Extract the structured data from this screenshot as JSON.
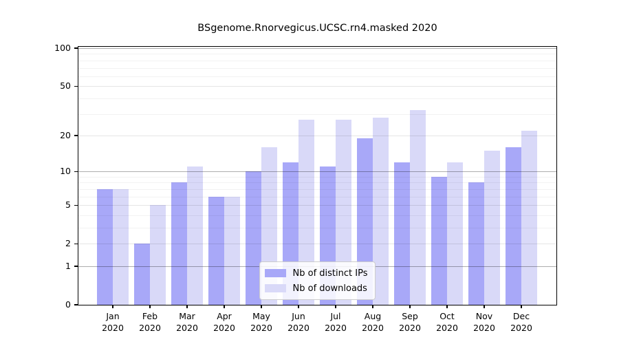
{
  "figure": {
    "background": "#ffffff"
  },
  "chart_data": {
    "type": "bar",
    "title": "BSgenome.Rnorvegicus.UCSC.rn4.masked 2020",
    "categories": [
      "Jan",
      "Feb",
      "Mar",
      "Apr",
      "May",
      "Jun",
      "Jul",
      "Aug",
      "Sep",
      "Oct",
      "Nov",
      "Dec"
    ],
    "x_tick_year": "2020",
    "series": [
      {
        "key": "distinct-ips",
        "name": "Nb of distinct IPs",
        "color": "#a8a8f8",
        "values": [
          7,
          2,
          8,
          6,
          10,
          12,
          11,
          19,
          12,
          9,
          8,
          16
        ]
      },
      {
        "key": "downloads",
        "name": "Nb of downloads",
        "color": "#d9d9f8",
        "values": [
          7,
          5,
          11,
          6,
          16,
          27,
          27,
          28,
          32,
          12,
          15,
          22
        ]
      }
    ],
    "y_scale": "log1p",
    "y_ticks": [
      0,
      1,
      2,
      5,
      10,
      20,
      50,
      100
    ],
    "y_minor_ticks": [
      3,
      4,
      6,
      7,
      8,
      9,
      30,
      40,
      60,
      70,
      80,
      90
    ],
    "ylim": [
      0,
      105
    ],
    "xlabel": "",
    "ylabel": "",
    "grid": true,
    "legend_position": "lower center"
  },
  "style": {
    "bar_dark_color": "#a8a8f8",
    "bar_light_color": "#d9d9f8",
    "grid_decade_color": "rgba(0,0,0,0.32)",
    "grid_major_color": "rgba(0,0,0,0.10)",
    "grid_minor_color": "rgba(0,0,0,0.05)",
    "axis_color": "#000000",
    "text_color": "#000000"
  }
}
